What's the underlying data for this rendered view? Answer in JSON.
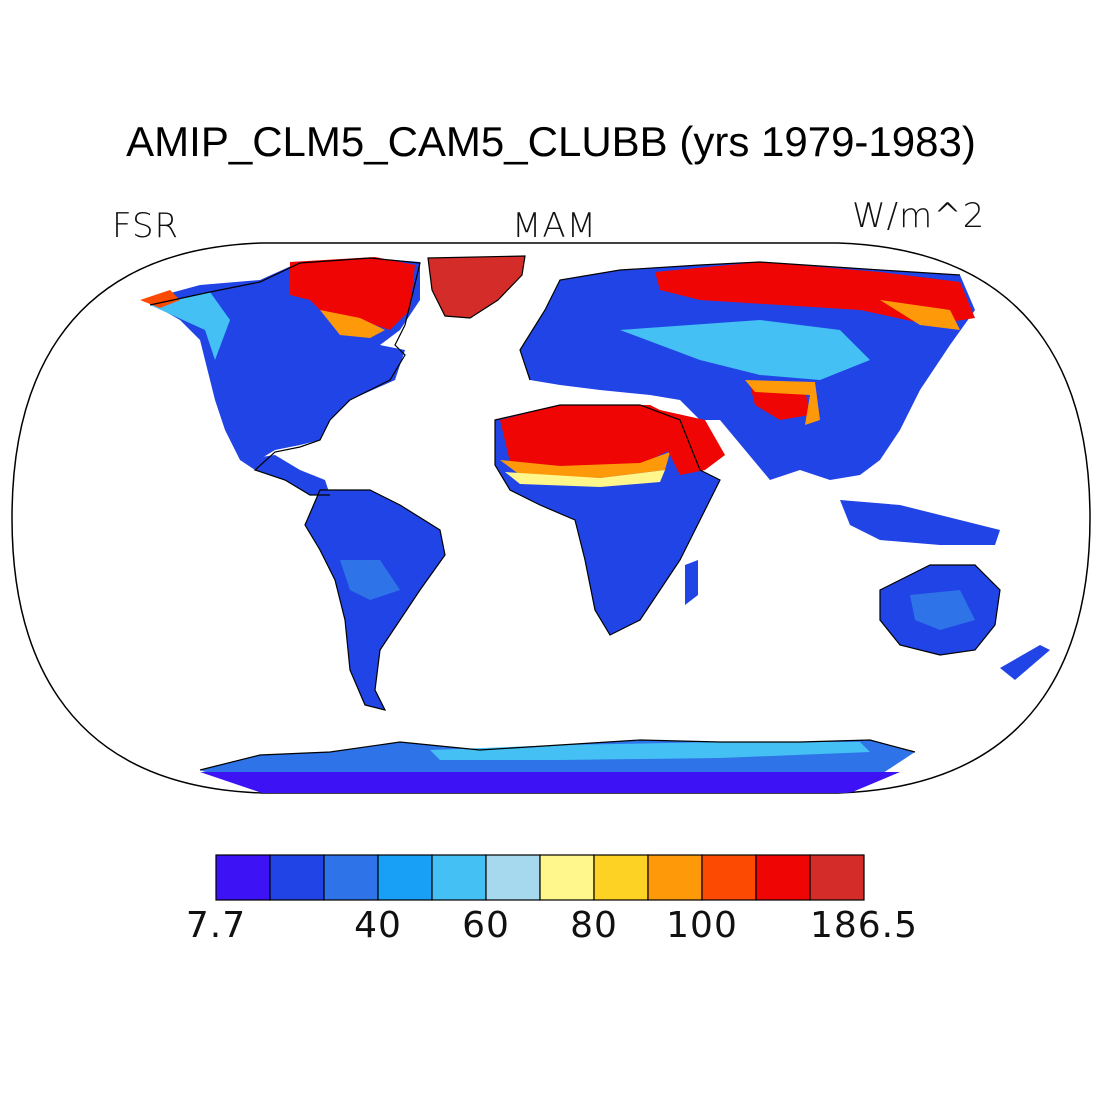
{
  "title": "AMIP_CLM5_CAM5_CLUBB (yrs 1979-1983)",
  "left_label": "FSR",
  "center_label": "MAM",
  "right_label": "W/m^2",
  "colorbar": {
    "colors": [
      "#3d12f4",
      "#2144e6",
      "#2f73e8",
      "#17a0f6",
      "#44c0f4",
      "#a6d8ee",
      "#fff68c",
      "#fed225",
      "#fe9a0a",
      "#fc4a02",
      "#ee0504",
      "#d42c28"
    ],
    "tick_labels": [
      "7.7",
      "40",
      "60",
      "80",
      "100",
      "186.5"
    ]
  },
  "colors": {
    "ocean": "#ffffff",
    "coastline": "#000000"
  }
}
